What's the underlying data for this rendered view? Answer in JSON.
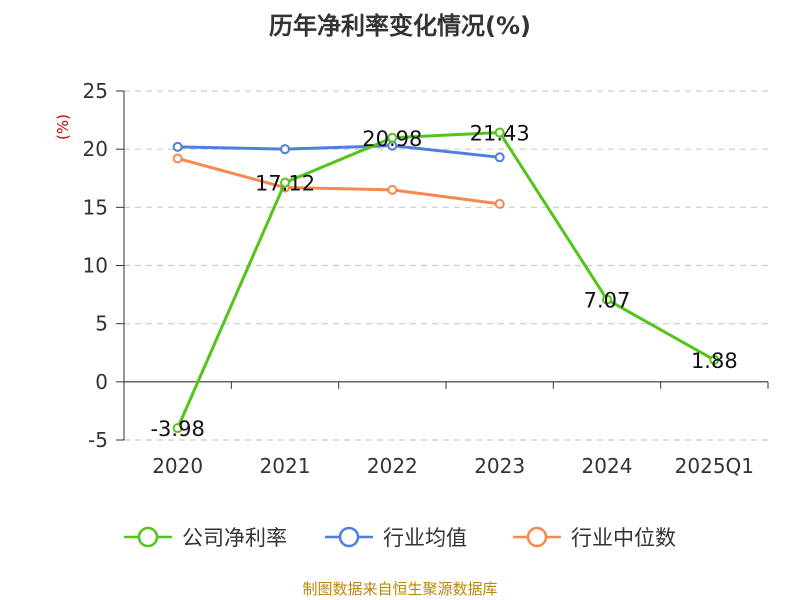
{
  "title": "历年净利率变化情况(%)",
  "source": "制图数据来自恒生聚源数据库",
  "colors": {
    "company": "#52c41a",
    "industry_avg": "#4f7fdc",
    "industry_median": "#f5894f",
    "unit": "#cc0000",
    "axis": "#333333",
    "grid": "#cccccc"
  },
  "chart_data": {
    "type": "line",
    "title": "历年净利率变化情况(%)",
    "ylabel": "(%)",
    "categories": [
      "2020",
      "2021",
      "2022",
      "2023",
      "2024",
      "2025Q1"
    ],
    "ylim": [
      -5,
      25
    ],
    "yticks": [
      -5,
      0,
      5,
      10,
      15,
      20,
      25
    ],
    "grid": true,
    "legend_position": "bottom",
    "series": [
      {
        "name": "公司净利率",
        "key": "company",
        "values": [
          -3.98,
          17.12,
          20.98,
          21.43,
          7.07,
          1.88
        ],
        "labels": [
          "-3.98",
          "17.12",
          "20.98",
          "21.43",
          "7.07",
          "1.88"
        ]
      },
      {
        "name": "行业均值",
        "key": "industry_avg",
        "values": [
          20.2,
          20.0,
          20.3,
          19.3,
          null,
          null
        ]
      },
      {
        "name": "行业中位数",
        "key": "industry_median",
        "values": [
          19.2,
          16.7,
          16.5,
          15.3,
          null,
          null
        ]
      }
    ]
  }
}
